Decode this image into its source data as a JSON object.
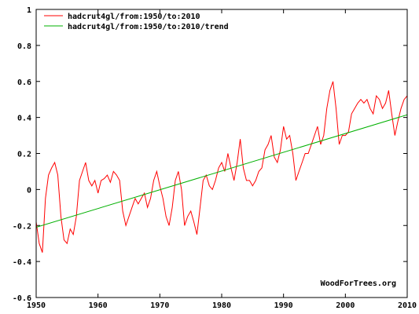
{
  "chart_data": {
    "type": "line",
    "title": "",
    "xlabel": "",
    "ylabel": "",
    "xlim": [
      1950,
      2010
    ],
    "ylim": [
      -0.6,
      1.0
    ],
    "x_ticks": [
      "1950",
      "1960",
      "1970",
      "1980",
      "1990",
      "2000",
      "2010"
    ],
    "y_ticks": [
      "-0.6",
      "-0.4",
      "-0.2",
      "0",
      "0.2",
      "0.4",
      "0.6",
      "0.8",
      "1"
    ],
    "grid": false,
    "legend_position": "top-left",
    "watermark": "WoodForTrees.org",
    "series": [
      {
        "name": "hadcrut4gl/from:1950/to:2010",
        "color": "#ff0000",
        "x": [
          1950.0,
          1950.5,
          1951.0,
          1951.5,
          1952.0,
          1952.5,
          1953.0,
          1953.5,
          1954.0,
          1954.5,
          1955.0,
          1955.5,
          1956.0,
          1956.5,
          1957.0,
          1957.5,
          1958.0,
          1958.5,
          1959.0,
          1959.5,
          1960.0,
          1960.5,
          1961.0,
          1961.5,
          1962.0,
          1962.5,
          1963.0,
          1963.5,
          1964.0,
          1964.5,
          1965.0,
          1965.5,
          1966.0,
          1966.5,
          1967.0,
          1967.5,
          1968.0,
          1968.5,
          1969.0,
          1969.5,
          1970.0,
          1970.5,
          1971.0,
          1971.5,
          1972.0,
          1972.5,
          1973.0,
          1973.5,
          1974.0,
          1974.5,
          1975.0,
          1975.5,
          1976.0,
          1976.5,
          1977.0,
          1977.5,
          1978.0,
          1978.5,
          1979.0,
          1979.5,
          1980.0,
          1980.5,
          1981.0,
          1981.5,
          1982.0,
          1982.5,
          1983.0,
          1983.5,
          1984.0,
          1984.5,
          1985.0,
          1985.5,
          1986.0,
          1986.5,
          1987.0,
          1987.5,
          1988.0,
          1988.5,
          1989.0,
          1989.5,
          1990.0,
          1990.5,
          1991.0,
          1991.5,
          1992.0,
          1992.5,
          1993.0,
          1993.5,
          1994.0,
          1994.5,
          1995.0,
          1995.5,
          1996.0,
          1996.5,
          1997.0,
          1997.5,
          1998.0,
          1998.5,
          1999.0,
          1999.5,
          2000.0,
          2000.5,
          2001.0,
          2001.5,
          2002.0,
          2002.5,
          2003.0,
          2003.5,
          2004.0,
          2004.5,
          2005.0,
          2005.5,
          2006.0,
          2006.5,
          2007.0,
          2007.5,
          2008.0,
          2008.5,
          2009.0,
          2009.5,
          2010.0
        ],
        "y": [
          -0.18,
          -0.3,
          -0.35,
          -0.05,
          0.08,
          0.12,
          0.15,
          0.08,
          -0.15,
          -0.28,
          -0.3,
          -0.22,
          -0.25,
          -0.15,
          0.05,
          0.1,
          0.15,
          0.05,
          0.02,
          0.05,
          -0.02,
          0.05,
          0.06,
          0.08,
          0.04,
          0.1,
          0.08,
          0.05,
          -0.12,
          -0.2,
          -0.15,
          -0.1,
          -0.05,
          -0.08,
          -0.05,
          -0.02,
          -0.1,
          -0.05,
          0.05,
          0.1,
          0.02,
          -0.05,
          -0.15,
          -0.2,
          -0.1,
          0.05,
          0.1,
          0.0,
          -0.2,
          -0.15,
          -0.12,
          -0.18,
          -0.25,
          -0.1,
          0.05,
          0.08,
          0.02,
          0.0,
          0.05,
          0.12,
          0.15,
          0.1,
          0.2,
          0.12,
          0.05,
          0.15,
          0.28,
          0.12,
          0.05,
          0.05,
          0.02,
          0.05,
          0.1,
          0.12,
          0.22,
          0.25,
          0.3,
          0.18,
          0.15,
          0.22,
          0.35,
          0.28,
          0.3,
          0.2,
          0.05,
          0.1,
          0.15,
          0.2,
          0.2,
          0.25,
          0.3,
          0.35,
          0.25,
          0.3,
          0.45,
          0.55,
          0.6,
          0.45,
          0.25,
          0.3,
          0.3,
          0.32,
          0.42,
          0.45,
          0.48,
          0.5,
          0.48,
          0.5,
          0.45,
          0.42,
          0.52,
          0.5,
          0.45,
          0.48,
          0.55,
          0.42,
          0.3,
          0.38,
          0.45,
          0.5,
          0.52
        ]
      },
      {
        "name": "hadcrut4gl/from:1950/to:2010/trend",
        "color": "#00b000",
        "x": [
          1950,
          2010
        ],
        "y": [
          -0.21,
          0.415
        ]
      }
    ]
  }
}
